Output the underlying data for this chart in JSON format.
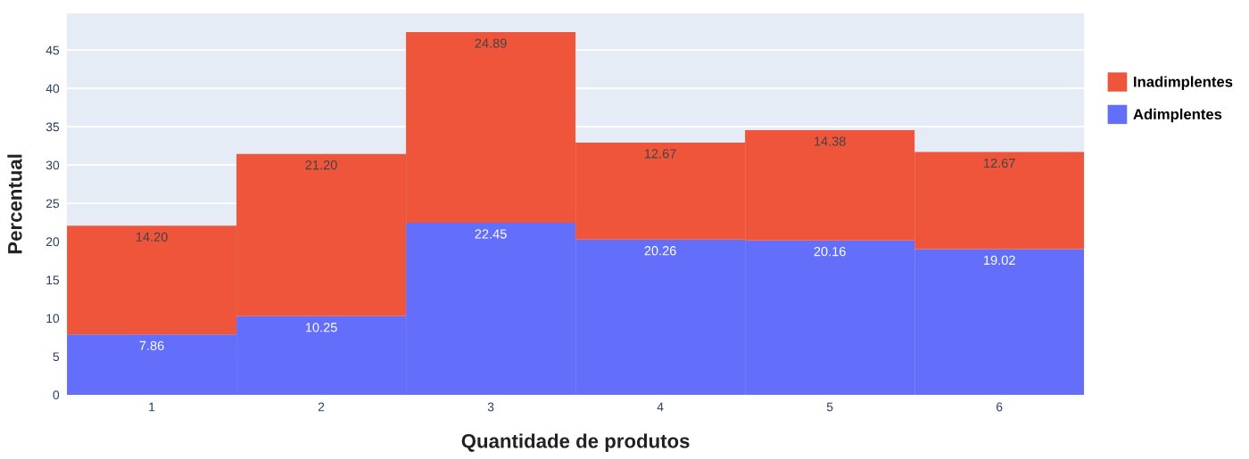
{
  "chart_data": {
    "type": "bar",
    "stacked": true,
    "xlabel": "Quantidade de produtos",
    "ylabel": "Percentual",
    "categories": [
      "1",
      "2",
      "3",
      "4",
      "5",
      "6"
    ],
    "series": [
      {
        "name": "Adimplentes",
        "color": "#636efa",
        "values": [
          7.86,
          10.25,
          22.45,
          20.26,
          20.16,
          19.02
        ],
        "value_labels": [
          "7.86",
          "10.25",
          "22.45",
          "20.26",
          "20.16",
          "19.02"
        ]
      },
      {
        "name": "Inadimplentes",
        "color": "#ef553b",
        "values": [
          14.2,
          21.2,
          24.89,
          12.67,
          14.38,
          12.67
        ],
        "value_labels": [
          "14.20",
          "21.20",
          "24.89",
          "12.67",
          "14.38",
          "12.67"
        ]
      }
    ],
    "ylim": [
      0,
      49.8
    ],
    "yticks": [
      0,
      5,
      10,
      15,
      20,
      25,
      30,
      35,
      40,
      45
    ],
    "grid": "y",
    "legend": "top right"
  }
}
